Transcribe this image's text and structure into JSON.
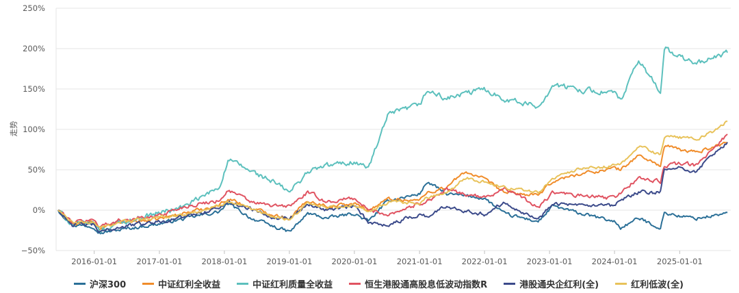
{
  "chart_data": {
    "type": "line",
    "ylabel": "走势",
    "ylim": [
      -50,
      250
    ],
    "yticks": [
      {
        "value": 250,
        "label": "250%"
      },
      {
        "value": 200,
        "label": "200%"
      },
      {
        "value": 150,
        "label": "150%"
      },
      {
        "value": 100,
        "label": "100%"
      },
      {
        "value": 50,
        "label": "50%"
      },
      {
        "value": 0,
        "label": "0%"
      },
      {
        "value": -50,
        "label": "−50%"
      }
    ],
    "xlim": [
      "2015-06-01",
      "2025-10-15"
    ],
    "xticks": [
      "2016-01-01",
      "2017-01-01",
      "2018-01-01",
      "2019-01-01",
      "2020-01-01",
      "2021-01-01",
      "2022-01-01",
      "2023-01-01",
      "2024-01-01",
      "2025-01-01"
    ],
    "grid": true,
    "legend_position": "bottom",
    "series": [
      {
        "name": "沪深300",
        "color": "#2a6f97",
        "volatility": 2.2,
        "points": [
          [
            "2015-06-12",
            0
          ],
          [
            "2015-09-01",
            -18
          ],
          [
            "2016-01-01",
            -20
          ],
          [
            "2016-02-01",
            -28
          ],
          [
            "2016-06-01",
            -24
          ],
          [
            "2016-12-01",
            -18
          ],
          [
            "2017-06-01",
            -10
          ],
          [
            "2017-12-01",
            -2
          ],
          [
            "2018-01-24",
            8
          ],
          [
            "2018-06-01",
            -10
          ],
          [
            "2018-10-01",
            -20
          ],
          [
            "2019-01-03",
            -27
          ],
          [
            "2019-04-15",
            -4
          ],
          [
            "2019-08-01",
            -10
          ],
          [
            "2019-12-31",
            -4
          ],
          [
            "2020-03-20",
            -14
          ],
          [
            "2020-07-10",
            12
          ],
          [
            "2020-12-31",
            20
          ],
          [
            "2021-02-15",
            35
          ],
          [
            "2021-06-01",
            20
          ],
          [
            "2021-12-31",
            15
          ],
          [
            "2022-04-25",
            -5
          ],
          [
            "2022-10-31",
            -14
          ],
          [
            "2023-01-20",
            5
          ],
          [
            "2023-06-01",
            -3
          ],
          [
            "2023-12-31",
            -14
          ],
          [
            "2024-02-05",
            -22
          ],
          [
            "2024-05-15",
            -10
          ],
          [
            "2024-09-15",
            -22
          ],
          [
            "2024-10-08",
            -3
          ],
          [
            "2025-01-13",
            -8
          ],
          [
            "2025-04-07",
            -10
          ],
          [
            "2025-08-01",
            -6
          ],
          [
            "2025-09-26",
            -3
          ]
        ]
      },
      {
        "name": "中证红利全收益",
        "color": "#f08c2a",
        "volatility": 2.2,
        "points": [
          [
            "2015-06-12",
            0
          ],
          [
            "2015-09-01",
            -18
          ],
          [
            "2016-01-01",
            -15
          ],
          [
            "2016-02-01",
            -23
          ],
          [
            "2016-06-01",
            -15
          ],
          [
            "2016-12-01",
            -12
          ],
          [
            "2017-06-01",
            -3
          ],
          [
            "2017-12-01",
            6
          ],
          [
            "2018-01-24",
            15
          ],
          [
            "2018-06-01",
            2
          ],
          [
            "2018-10-01",
            -5
          ],
          [
            "2019-01-03",
            -10
          ],
          [
            "2019-04-15",
            12
          ],
          [
            "2019-08-01",
            5
          ],
          [
            "2019-12-31",
            8
          ],
          [
            "2020-03-20",
            0
          ],
          [
            "2020-07-10",
            14
          ],
          [
            "2020-12-31",
            12
          ],
          [
            "2021-02-15",
            22
          ],
          [
            "2021-06-01",
            28
          ],
          [
            "2021-09-15",
            48
          ],
          [
            "2021-12-31",
            38
          ],
          [
            "2022-04-25",
            22
          ],
          [
            "2022-10-31",
            18
          ],
          [
            "2023-01-20",
            36
          ],
          [
            "2023-06-01",
            44
          ],
          [
            "2023-12-31",
            52
          ],
          [
            "2024-02-05",
            50
          ],
          [
            "2024-05-15",
            68
          ],
          [
            "2024-09-15",
            55
          ],
          [
            "2024-10-08",
            80
          ],
          [
            "2025-01-13",
            74
          ],
          [
            "2025-04-07",
            72
          ],
          [
            "2025-08-01",
            80
          ],
          [
            "2025-09-26",
            84
          ]
        ]
      },
      {
        "name": "中证红利质量全收益",
        "color": "#5cc0bd",
        "volatility": 3.5,
        "points": [
          [
            "2015-06-12",
            0
          ],
          [
            "2015-09-01",
            -18
          ],
          [
            "2016-01-01",
            -16
          ],
          [
            "2016-02-01",
            -25
          ],
          [
            "2016-06-01",
            -15
          ],
          [
            "2016-12-01",
            -5
          ],
          [
            "2017-06-01",
            5
          ],
          [
            "2017-12-01",
            28
          ],
          [
            "2018-01-24",
            62
          ],
          [
            "2018-06-01",
            48
          ],
          [
            "2018-10-01",
            35
          ],
          [
            "2019-01-03",
            22
          ],
          [
            "2019-04-15",
            48
          ],
          [
            "2019-08-01",
            55
          ],
          [
            "2019-12-31",
            60
          ],
          [
            "2020-03-20",
            52
          ],
          [
            "2020-07-10",
            118
          ],
          [
            "2020-12-31",
            130
          ],
          [
            "2021-02-15",
            148
          ],
          [
            "2021-06-01",
            138
          ],
          [
            "2021-12-31",
            150
          ],
          [
            "2022-04-25",
            138
          ],
          [
            "2022-10-31",
            128
          ],
          [
            "2023-01-20",
            155
          ],
          [
            "2023-06-01",
            150
          ],
          [
            "2023-12-31",
            145
          ],
          [
            "2024-02-05",
            135
          ],
          [
            "2024-05-15",
            185
          ],
          [
            "2024-09-15",
            148
          ],
          [
            "2024-10-08",
            200
          ],
          [
            "2025-01-13",
            188
          ],
          [
            "2025-04-07",
            182
          ],
          [
            "2025-08-01",
            190
          ],
          [
            "2025-09-26",
            195
          ]
        ]
      },
      {
        "name": "恒生港股通高股息低波动指数R",
        "color": "#e05361",
        "volatility": 2.5,
        "points": [
          [
            "2015-06-12",
            0
          ],
          [
            "2015-09-01",
            -15
          ],
          [
            "2016-01-01",
            -12
          ],
          [
            "2016-02-01",
            -20
          ],
          [
            "2016-06-01",
            -12
          ],
          [
            "2016-12-01",
            -8
          ],
          [
            "2017-06-01",
            5
          ],
          [
            "2017-12-01",
            12
          ],
          [
            "2018-01-24",
            25
          ],
          [
            "2018-06-01",
            10
          ],
          [
            "2018-10-01",
            5
          ],
          [
            "2019-01-03",
            5
          ],
          [
            "2019-04-15",
            22
          ],
          [
            "2019-08-01",
            10
          ],
          [
            "2019-12-31",
            15
          ],
          [
            "2020-03-20",
            0
          ],
          [
            "2020-07-10",
            -5
          ],
          [
            "2020-12-31",
            8
          ],
          [
            "2021-02-15",
            12
          ],
          [
            "2021-06-01",
            25
          ],
          [
            "2021-12-31",
            15
          ],
          [
            "2022-04-25",
            28
          ],
          [
            "2022-10-31",
            3
          ],
          [
            "2023-01-20",
            22
          ],
          [
            "2023-06-01",
            18
          ],
          [
            "2023-12-31",
            15
          ],
          [
            "2024-02-05",
            22
          ],
          [
            "2024-05-15",
            40
          ],
          [
            "2024-09-15",
            35
          ],
          [
            "2024-10-08",
            55
          ],
          [
            "2025-01-13",
            58
          ],
          [
            "2025-04-07",
            55
          ],
          [
            "2025-08-01",
            82
          ],
          [
            "2025-09-26",
            94
          ]
        ]
      },
      {
        "name": "港股通央企红利(全)",
        "color": "#3b4a8a",
        "volatility": 2.5,
        "points": [
          [
            "2015-06-12",
            0
          ],
          [
            "2015-09-01",
            -18
          ],
          [
            "2016-01-01",
            -18
          ],
          [
            "2016-02-01",
            -28
          ],
          [
            "2016-06-01",
            -20
          ],
          [
            "2016-12-01",
            -15
          ],
          [
            "2017-06-01",
            -8
          ],
          [
            "2017-12-01",
            3
          ],
          [
            "2018-01-24",
            10
          ],
          [
            "2018-06-01",
            2
          ],
          [
            "2018-10-01",
            -8
          ],
          [
            "2019-01-03",
            -10
          ],
          [
            "2019-04-15",
            8
          ],
          [
            "2019-08-01",
            0
          ],
          [
            "2019-12-31",
            5
          ],
          [
            "2020-03-20",
            -15
          ],
          [
            "2020-07-10",
            -18
          ],
          [
            "2020-12-31",
            -5
          ],
          [
            "2021-02-15",
            -8
          ],
          [
            "2021-06-01",
            5
          ],
          [
            "2021-12-31",
            -5
          ],
          [
            "2022-04-25",
            10
          ],
          [
            "2022-10-31",
            -12
          ],
          [
            "2023-01-20",
            10
          ],
          [
            "2023-06-01",
            5
          ],
          [
            "2023-12-31",
            5
          ],
          [
            "2024-02-05",
            12
          ],
          [
            "2024-05-15",
            22
          ],
          [
            "2024-09-15",
            22
          ],
          [
            "2024-10-08",
            50
          ],
          [
            "2025-01-13",
            52
          ],
          [
            "2025-04-07",
            48
          ],
          [
            "2025-08-01",
            75
          ],
          [
            "2025-09-26",
            84
          ]
        ]
      },
      {
        "name": "红利低波(全)",
        "color": "#e8c25a",
        "volatility": 2.0,
        "points": [
          [
            "2015-06-12",
            0
          ],
          [
            "2015-09-01",
            -16
          ],
          [
            "2016-01-01",
            -15
          ],
          [
            "2016-02-01",
            -22
          ],
          [
            "2016-06-01",
            -14
          ],
          [
            "2016-12-01",
            -10
          ],
          [
            "2017-06-01",
            -5
          ],
          [
            "2017-12-01",
            5
          ],
          [
            "2018-01-24",
            12
          ],
          [
            "2018-06-01",
            0
          ],
          [
            "2018-10-01",
            -8
          ],
          [
            "2019-01-03",
            -12
          ],
          [
            "2019-04-15",
            10
          ],
          [
            "2019-08-01",
            3
          ],
          [
            "2019-12-31",
            6
          ],
          [
            "2020-03-20",
            -3
          ],
          [
            "2020-07-10",
            10
          ],
          [
            "2020-12-31",
            8
          ],
          [
            "2021-02-15",
            16
          ],
          [
            "2021-06-01",
            22
          ],
          [
            "2021-09-15",
            40
          ],
          [
            "2021-12-31",
            35
          ],
          [
            "2022-04-25",
            28
          ],
          [
            "2022-10-31",
            22
          ],
          [
            "2023-01-20",
            40
          ],
          [
            "2023-06-01",
            50
          ],
          [
            "2023-12-31",
            55
          ],
          [
            "2024-02-05",
            56
          ],
          [
            "2024-05-15",
            80
          ],
          [
            "2024-09-15",
            68
          ],
          [
            "2024-10-08",
            92
          ],
          [
            "2025-01-13",
            90
          ],
          [
            "2025-04-07",
            88
          ],
          [
            "2025-08-01",
            100
          ],
          [
            "2025-09-26",
            110
          ]
        ]
      }
    ]
  }
}
